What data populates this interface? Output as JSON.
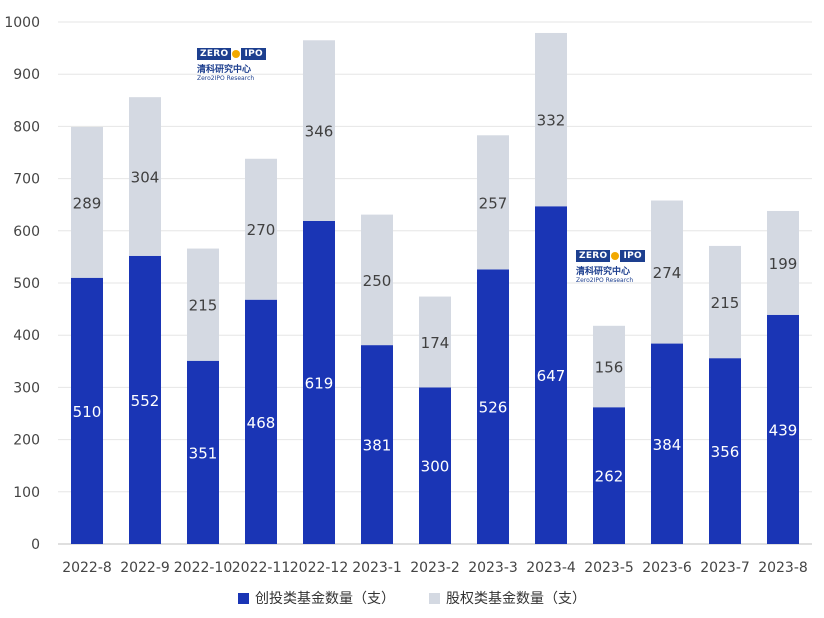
{
  "chart_data": {
    "type": "bar",
    "stacked": true,
    "categories": [
      "2022-8",
      "2022-9",
      "2022-10",
      "2022-11",
      "2022-12",
      "2023-1",
      "2023-2",
      "2023-3",
      "2023-4",
      "2023-5",
      "2023-6",
      "2023-7",
      "2023-8"
    ],
    "series": [
      {
        "name": "创投类基金数量（支）",
        "color": "#1a35b5",
        "values": [
          510,
          552,
          351,
          468,
          619,
          381,
          300,
          526,
          647,
          262,
          384,
          356,
          439
        ]
      },
      {
        "name": "股权类基金数量（支）",
        "color": "#d4d9e2",
        "values": [
          289,
          304,
          215,
          270,
          346,
          250,
          174,
          257,
          332,
          156,
          274,
          215,
          199
        ]
      }
    ],
    "ylim": [
      0,
      1000
    ],
    "yticks": [
      0,
      100,
      200,
      300,
      400,
      500,
      600,
      700,
      800,
      900,
      1000
    ],
    "grid": true,
    "legend_position": "bottom"
  },
  "watermark": {
    "brand": "ZERO IPO",
    "brand_left": "ZERO",
    "brand_right": "IPO",
    "cn": "清科研究中心",
    "en": "Zero2IPO Research"
  }
}
